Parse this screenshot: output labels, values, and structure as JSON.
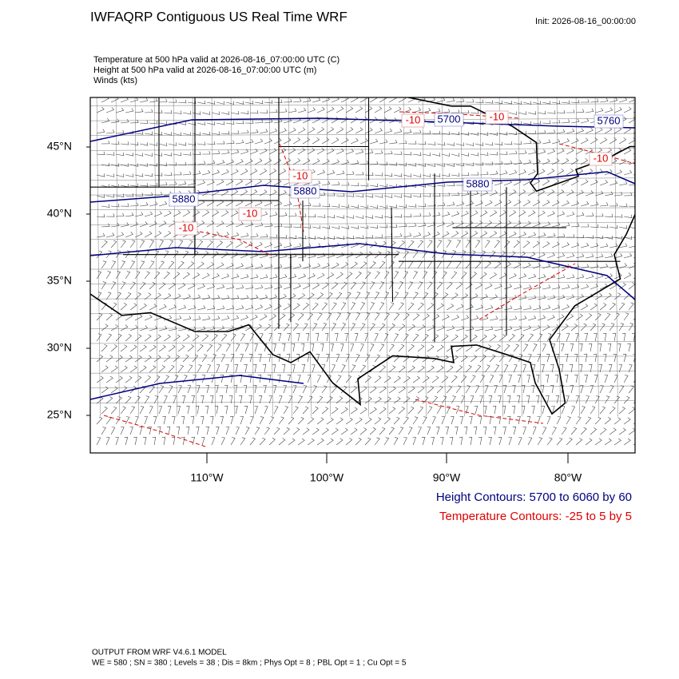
{
  "header": {
    "title": "IWFAQRP Contiguous US Real Time WRF",
    "init": "Init: 2026-08-16_00:00:00"
  },
  "fields": [
    "Temperature at 500 hPa valid at 2026-08-16_07:00:00 UTC   (C)",
    "Height at 500 hPa valid at 2026-08-16_07:00:00 UTC   (m)",
    "Winds   (kts)"
  ],
  "map": {
    "lat_labels": [
      "45°N",
      "40°N",
      "35°N",
      "30°N",
      "25°N"
    ],
    "lon_labels": [
      "110°W",
      "100°W",
      "90°W",
      "80°W"
    ],
    "height_labels": [
      "5880",
      "5880",
      "5700",
      "5880",
      "5760"
    ],
    "temperature_labels": [
      "-10",
      "-10",
      "-10",
      "-10",
      "-10",
      "-10"
    ]
  },
  "legend": {
    "height": "Height Contours: 5700 to 6060 by 60",
    "temperature": "Temperature Contours: -25 to 5 by 5"
  },
  "footer": {
    "line1": "OUTPUT FROM WRF V4.6.1 MODEL",
    "line2": "WE = 580 ; SN = 380 ; Levels = 38 ; Dis = 8km ; Phys Opt = 8 ; PBL Opt = 1 ; Cu Opt = 5"
  }
}
